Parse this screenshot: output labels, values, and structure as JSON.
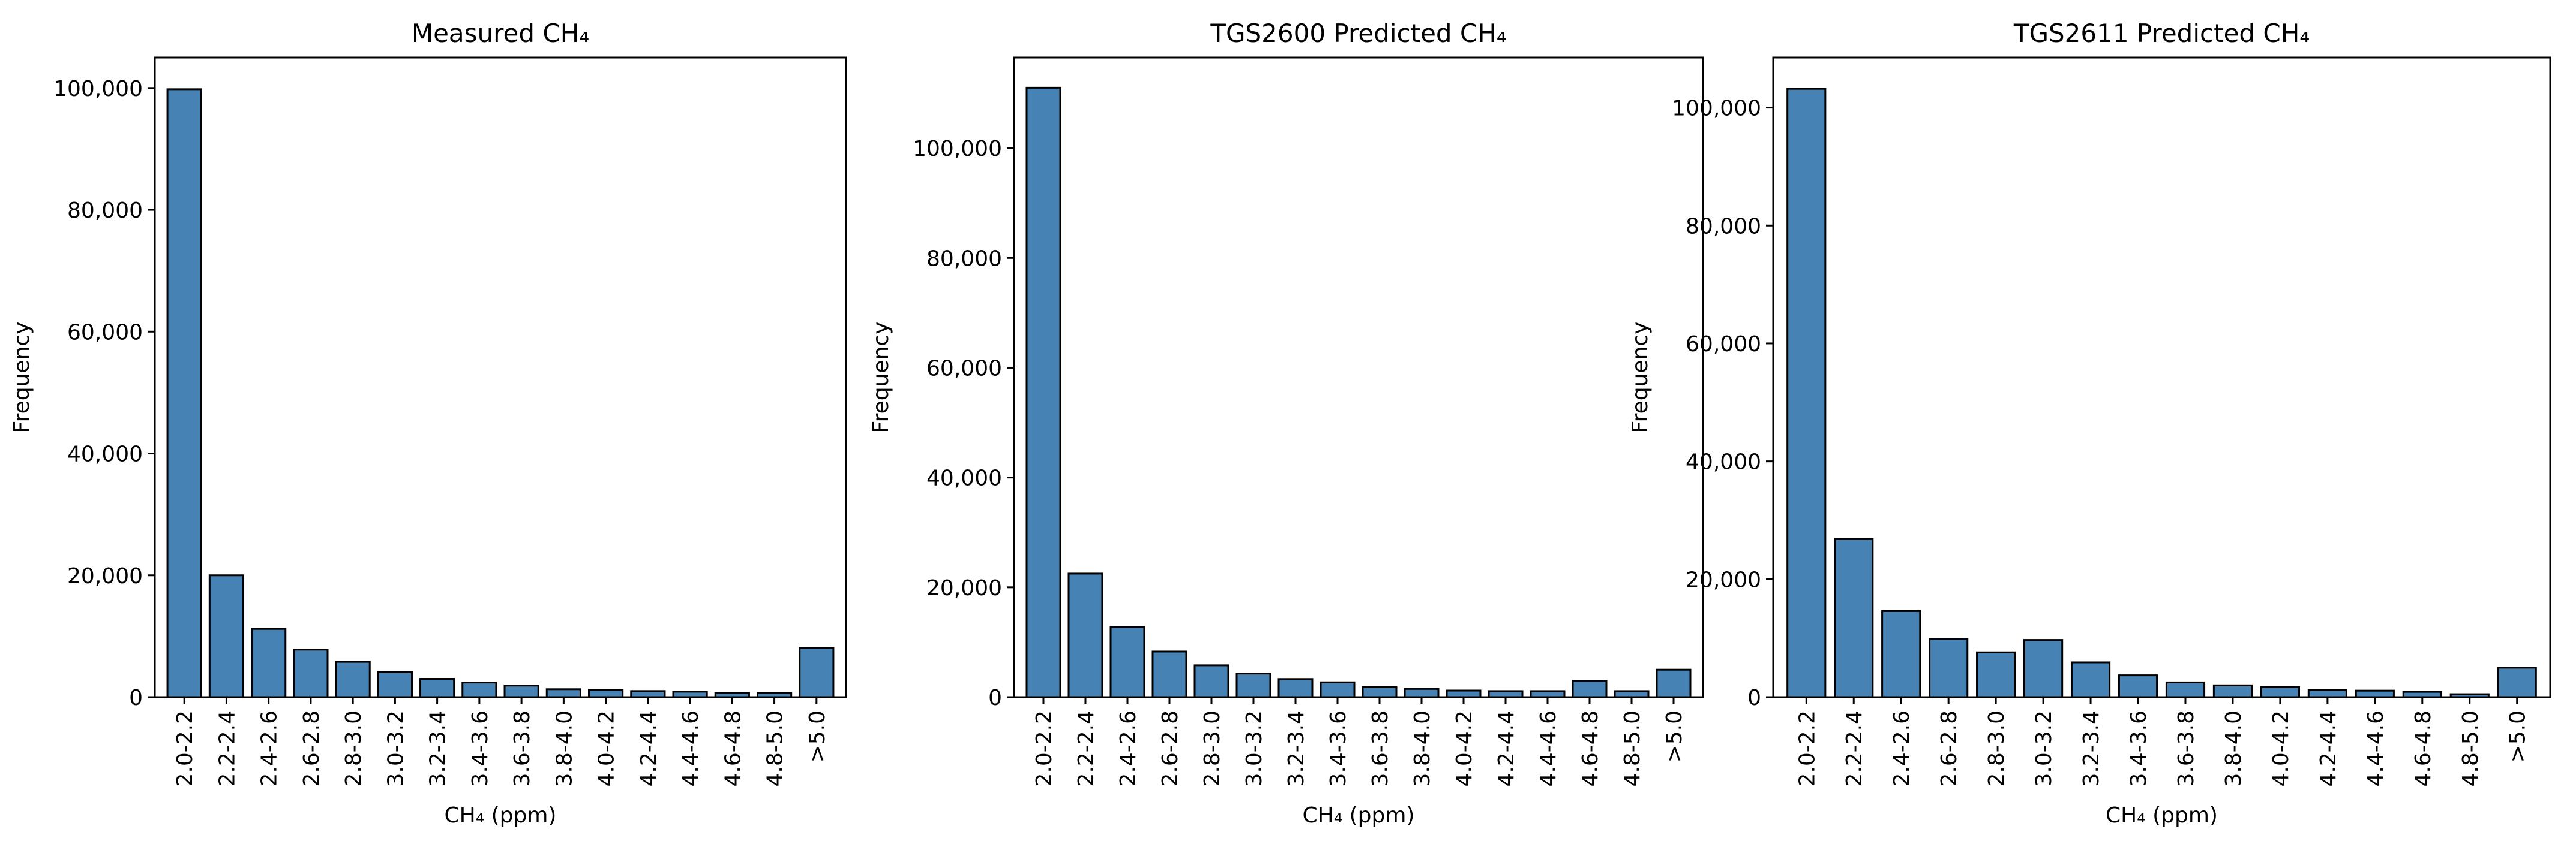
{
  "bar_color": "#4682b4",
  "chart_data": [
    {
      "type": "bar",
      "title": "Measured CH₄",
      "xlabel": "CH₄ (ppm)",
      "ylabel": "Frequency",
      "categories": [
        "2.0-2.2",
        "2.2-2.4",
        "2.4-2.6",
        "2.6-2.8",
        "2.8-3.0",
        "3.0-3.2",
        "3.2-3.4",
        "3.4-3.6",
        "3.6-3.8",
        "3.8-4.0",
        "4.0-4.2",
        "4.2-4.4",
        "4.4-4.6",
        "4.6-4.8",
        "4.8-5.0",
        ">5.0"
      ],
      "values": [
        99800,
        20000,
        11200,
        7800,
        5800,
        4100,
        3000,
        2400,
        1900,
        1300,
        1200,
        1000,
        900,
        700,
        700,
        8100
      ],
      "ylim": [
        0,
        105000
      ],
      "yticks": [
        0,
        20000,
        40000,
        60000,
        80000,
        100000
      ],
      "ytick_labels": [
        "0",
        "20,000",
        "40,000",
        "60,000",
        "80,000",
        "100,000"
      ],
      "grid": false
    },
    {
      "type": "bar",
      "title": "TGS2600 Predicted CH₄",
      "xlabel": "CH₄ (ppm)",
      "ylabel": "Frequency",
      "categories": [
        "2.0-2.2",
        "2.2-2.4",
        "2.4-2.6",
        "2.6-2.8",
        "2.8-3.0",
        "3.0-3.2",
        "3.2-3.4",
        "3.4-3.6",
        "3.6-3.8",
        "3.8-4.0",
        "4.0-4.2",
        "4.2-4.4",
        "4.4-4.6",
        "4.6-4.8",
        "4.8-5.0",
        ">5.0"
      ],
      "values": [
        111000,
        22500,
        12800,
        8300,
        5800,
        4300,
        3300,
        2700,
        1800,
        1500,
        1200,
        1100,
        1100,
        3000,
        1100,
        5000
      ],
      "ylim": [
        0,
        116500
      ],
      "yticks": [
        0,
        20000,
        40000,
        60000,
        80000,
        100000
      ],
      "ytick_labels": [
        "0",
        "20,000",
        "40,000",
        "60,000",
        "80,000",
        "100,000"
      ],
      "grid": false
    },
    {
      "type": "bar",
      "title": "TGS2611 Predicted CH₄",
      "xlabel": "CH₄ (ppm)",
      "ylabel": "Frequency",
      "categories": [
        "2.0-2.2",
        "2.2-2.4",
        "2.4-2.6",
        "2.6-2.8",
        "2.8-3.0",
        "3.0-3.2",
        "3.2-3.4",
        "3.4-3.6",
        "3.6-3.8",
        "3.8-4.0",
        "4.0-4.2",
        "4.2-4.4",
        "4.4-4.6",
        "4.6-4.8",
        "4.8-5.0",
        ">5.0"
      ],
      "values": [
        103200,
        26800,
        14600,
        9900,
        7600,
        9700,
        5900,
        3700,
        2500,
        2000,
        1700,
        1200,
        1100,
        900,
        500,
        5000
      ],
      "ylim": [
        0,
        108500
      ],
      "yticks": [
        0,
        20000,
        40000,
        60000,
        80000,
        100000
      ],
      "ytick_labels": [
        "0",
        "20,000",
        "40,000",
        "60,000",
        "80,000",
        "100,000"
      ],
      "grid": false
    }
  ]
}
